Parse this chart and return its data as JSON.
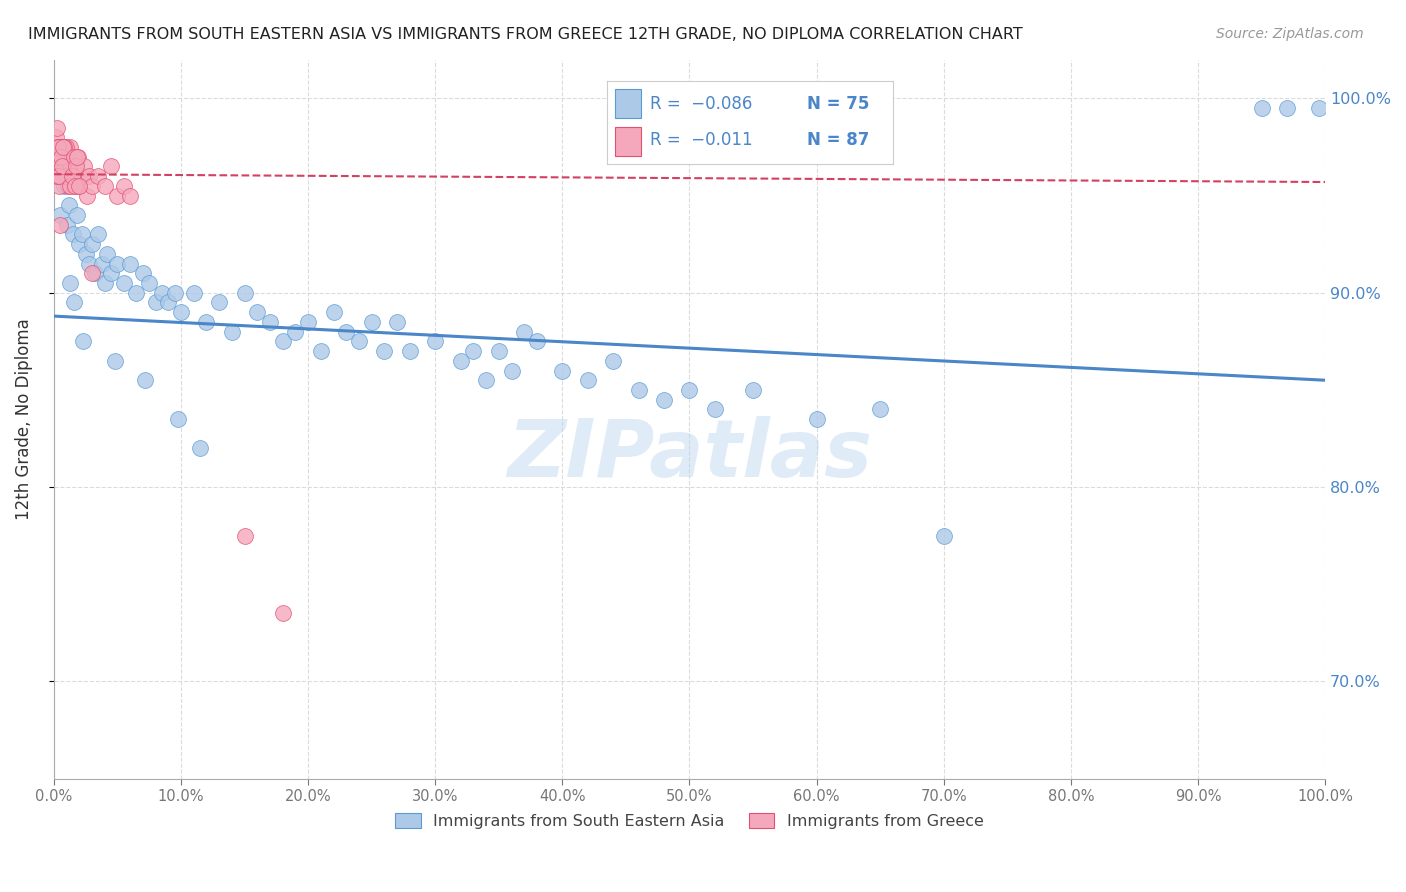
{
  "title": "IMMIGRANTS FROM SOUTH EASTERN ASIA VS IMMIGRANTS FROM GREECE 12TH GRADE, NO DIPLOMA CORRELATION CHART",
  "source": "Source: ZipAtlas.com",
  "ylabel": "12th Grade, No Diploma",
  "legend_blue_label": "Immigrants from South Eastern Asia",
  "legend_pink_label": "Immigrants from Greece",
  "blue_color": "#adc9e8",
  "pink_color": "#f5a8bc",
  "blue_edge_color": "#5b9bd5",
  "pink_edge_color": "#e05070",
  "blue_line_color": "#4a86c8",
  "pink_line_color": "#d44060",
  "right_tick_color": "#4a86c8",
  "watermark": "ZIPatlas",
  "background_color": "#ffffff",
  "grid_color": "#d8d8d8",
  "blue_scatter_x": [
    0.5,
    0.8,
    1.0,
    1.2,
    1.5,
    1.8,
    2.0,
    2.2,
    2.5,
    2.8,
    3.0,
    3.2,
    3.5,
    3.8,
    4.0,
    4.2,
    4.5,
    5.0,
    5.5,
    6.0,
    6.5,
    7.0,
    7.5,
    8.0,
    8.5,
    9.0,
    9.5,
    10.0,
    11.0,
    12.0,
    13.0,
    14.0,
    15.0,
    16.0,
    17.0,
    18.0,
    19.0,
    20.0,
    21.0,
    22.0,
    23.0,
    24.0,
    25.0,
    26.0,
    27.0,
    28.0,
    30.0,
    32.0,
    33.0,
    34.0,
    35.0,
    36.0,
    37.0,
    38.0,
    40.0,
    42.0,
    44.0,
    46.0,
    48.0,
    50.0,
    52.0,
    55.0,
    60.0,
    65.0,
    70.0,
    95.0,
    97.0,
    99.5,
    1.3,
    1.6,
    2.3,
    4.8,
    7.2,
    9.8,
    11.5
  ],
  "blue_scatter_y": [
    94.0,
    95.5,
    93.5,
    94.5,
    93.0,
    94.0,
    92.5,
    93.0,
    92.0,
    91.5,
    92.5,
    91.0,
    93.0,
    91.5,
    90.5,
    92.0,
    91.0,
    91.5,
    90.5,
    91.5,
    90.0,
    91.0,
    90.5,
    89.5,
    90.0,
    89.5,
    90.0,
    89.0,
    90.0,
    88.5,
    89.5,
    88.0,
    90.0,
    89.0,
    88.5,
    87.5,
    88.0,
    88.5,
    87.0,
    89.0,
    88.0,
    87.5,
    88.5,
    87.0,
    88.5,
    87.0,
    87.5,
    86.5,
    87.0,
    85.5,
    87.0,
    86.0,
    88.0,
    87.5,
    86.0,
    85.5,
    86.5,
    85.0,
    84.5,
    85.0,
    84.0,
    85.0,
    83.5,
    84.0,
    77.5,
    99.5,
    99.5,
    99.5,
    90.5,
    89.5,
    87.5,
    86.5,
    85.5,
    83.5,
    82.0
  ],
  "pink_scatter_x": [
    0.1,
    0.15,
    0.2,
    0.25,
    0.3,
    0.35,
    0.4,
    0.45,
    0.5,
    0.55,
    0.6,
    0.65,
    0.7,
    0.75,
    0.8,
    0.85,
    0.9,
    0.95,
    1.0,
    1.05,
    1.1,
    1.15,
    1.2,
    1.25,
    1.3,
    1.4,
    1.5,
    1.6,
    1.7,
    1.8,
    1.9,
    2.0,
    2.2,
    2.4,
    2.6,
    2.8,
    3.0,
    3.5,
    4.0,
    4.5,
    5.0,
    5.5,
    6.0,
    0.18,
    0.28,
    0.38,
    0.48,
    0.58,
    0.68,
    0.78,
    0.88,
    0.98,
    0.22,
    0.32,
    0.42,
    0.52,
    0.62,
    0.72,
    0.82,
    0.92,
    0.12,
    0.16,
    0.24,
    0.34,
    0.44,
    0.54,
    0.64,
    0.74,
    1.3,
    1.45,
    1.55,
    1.65,
    1.75,
    1.85,
    1.95,
    0.5,
    3.0,
    15.0,
    18.0
  ],
  "pink_scatter_y": [
    97.5,
    98.0,
    97.0,
    98.5,
    96.5,
    97.5,
    96.0,
    97.0,
    97.5,
    96.0,
    97.0,
    96.5,
    97.5,
    96.0,
    96.5,
    97.5,
    96.0,
    97.0,
    96.5,
    97.0,
    95.5,
    96.5,
    97.0,
    96.0,
    97.5,
    96.0,
    96.5,
    95.5,
    96.5,
    96.0,
    97.0,
    95.5,
    96.0,
    96.5,
    95.0,
    96.0,
    95.5,
    96.0,
    95.5,
    96.5,
    95.0,
    95.5,
    95.0,
    97.0,
    96.0,
    97.5,
    96.5,
    97.0,
    96.5,
    97.0,
    96.0,
    97.5,
    96.0,
    97.0,
    95.5,
    96.5,
    97.0,
    96.5,
    97.5,
    96.0,
    96.5,
    97.0,
    96.0,
    97.5,
    96.0,
    97.0,
    96.5,
    97.5,
    95.5,
    96.0,
    97.0,
    95.5,
    96.5,
    97.0,
    95.5,
    93.5,
    91.0,
    77.5,
    73.5
  ],
  "xlim": [
    0.0,
    100.0
  ],
  "ylim": [
    65.0,
    102.0
  ],
  "yticks": [
    70.0,
    80.0,
    90.0,
    100.0
  ],
  "xtick_positions": [
    0,
    10,
    20,
    30,
    40,
    50,
    60,
    70,
    80,
    90,
    100
  ],
  "blue_trend_x0": 0.0,
  "blue_trend_x1": 100.0,
  "blue_trend_y0": 88.8,
  "blue_trend_y1": 85.5,
  "pink_trend_x0": 0.0,
  "pink_trend_x1": 100.0,
  "pink_trend_y0": 96.1,
  "pink_trend_y1": 95.7
}
